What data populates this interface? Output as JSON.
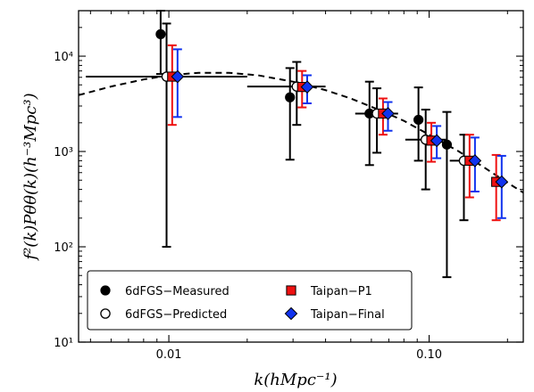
{
  "chart_data": {
    "type": "scatter",
    "xlabel": "k(hMpc⁻¹)",
    "ylabel": "f²(k)Pθθ(k)(h⁻³Mpc³)",
    "x_scale": "log",
    "y_scale": "log",
    "xlim": [
      0.0045,
      0.23
    ],
    "ylim": [
      10,
      30000
    ],
    "x_ticks": [
      0.01,
      0.1
    ],
    "x_tick_labels": [
      "0.01",
      "0.10"
    ],
    "y_ticks": [
      10,
      100,
      1000,
      10000
    ],
    "y_tick_labels": [
      "10¹",
      "10²",
      "10³",
      "10⁴"
    ],
    "legend_position": "bottom-left",
    "series": [
      {
        "name": "6dFGS−Measured",
        "marker": "circle-filled",
        "color": "#000000",
        "points": [
          {
            "x": 0.0093,
            "y": 17000,
            "ylo": 6500,
            "yhi": 30000
          },
          {
            "x": 0.0292,
            "y": 3700,
            "ylo": 820,
            "yhi": 7500
          },
          {
            "x": 0.059,
            "y": 2500,
            "ylo": 720,
            "yhi": 5400
          },
          {
            "x": 0.091,
            "y": 2150,
            "ylo": 800,
            "yhi": 4700
          },
          {
            "x": 0.117,
            "y": 1180,
            "ylo": 48,
            "yhi": 2600
          }
        ]
      },
      {
        "name": "6dFGS−Predicted",
        "marker": "circle-open",
        "color": "#000000",
        "points": [
          {
            "x": 0.0098,
            "y": 6100,
            "ylo": 100,
            "yhi": 22000,
            "xlo": 0.0048,
            "xhi": 0.02
          },
          {
            "x": 0.031,
            "y": 4800,
            "ylo": 1900,
            "yhi": 8700,
            "xlo": 0.02,
            "xhi": 0.04
          },
          {
            "x": 0.063,
            "y": 2500,
            "ylo": 970,
            "yhi": 4600,
            "xlo": 0.052,
            "xhi": 0.076
          },
          {
            "x": 0.097,
            "y": 1330,
            "ylo": 400,
            "yhi": 2750,
            "xlo": 0.081,
            "xhi": 0.116
          },
          {
            "x": 0.136,
            "y": 800,
            "ylo": 190,
            "yhi": 1500,
            "xlo": 0.12,
            "xhi": 0.156
          }
        ]
      },
      {
        "name": "Taipan−P1",
        "marker": "square",
        "color": "#ee1111",
        "points": [
          {
            "x": 0.0103,
            "y": 6100,
            "ylo": 1900,
            "yhi": 13000
          },
          {
            "x": 0.0325,
            "y": 4750,
            "ylo": 2900,
            "yhi": 7000
          },
          {
            "x": 0.0665,
            "y": 2500,
            "ylo": 1500,
            "yhi": 3600
          },
          {
            "x": 0.102,
            "y": 1300,
            "ylo": 780,
            "yhi": 2000
          },
          {
            "x": 0.143,
            "y": 800,
            "ylo": 330,
            "yhi": 1500
          },
          {
            "x": 0.181,
            "y": 480,
            "ylo": 190,
            "yhi": 920
          }
        ]
      },
      {
        "name": "Taipan−Final",
        "marker": "diamond",
        "color": "#1133ee",
        "points": [
          {
            "x": 0.0108,
            "y": 6100,
            "ylo": 2300,
            "yhi": 11800
          },
          {
            "x": 0.034,
            "y": 4750,
            "ylo": 3200,
            "yhi": 6300
          },
          {
            "x": 0.0695,
            "y": 2500,
            "ylo": 1650,
            "yhi": 3300
          },
          {
            "x": 0.107,
            "y": 1300,
            "ylo": 850,
            "yhi": 1850
          },
          {
            "x": 0.15,
            "y": 800,
            "ylo": 380,
            "yhi": 1400
          },
          {
            "x": 0.19,
            "y": 480,
            "ylo": 200,
            "yhi": 900
          }
        ]
      }
    ],
    "model_curve": {
      "style": "dashed",
      "color": "#000000",
      "points": [
        [
          0.0045,
          3900
        ],
        [
          0.006,
          4800
        ],
        [
          0.008,
          5700
        ],
        [
          0.01,
          6300
        ],
        [
          0.013,
          6700
        ],
        [
          0.017,
          6700
        ],
        [
          0.022,
          6300
        ],
        [
          0.03,
          5400
        ],
        [
          0.04,
          4400
        ],
        [
          0.05,
          3600
        ],
        [
          0.065,
          2700
        ],
        [
          0.08,
          2100
        ],
        [
          0.1,
          1500
        ],
        [
          0.13,
          1000
        ],
        [
          0.16,
          700
        ],
        [
          0.2,
          470
        ],
        [
          0.23,
          370
        ]
      ]
    }
  }
}
